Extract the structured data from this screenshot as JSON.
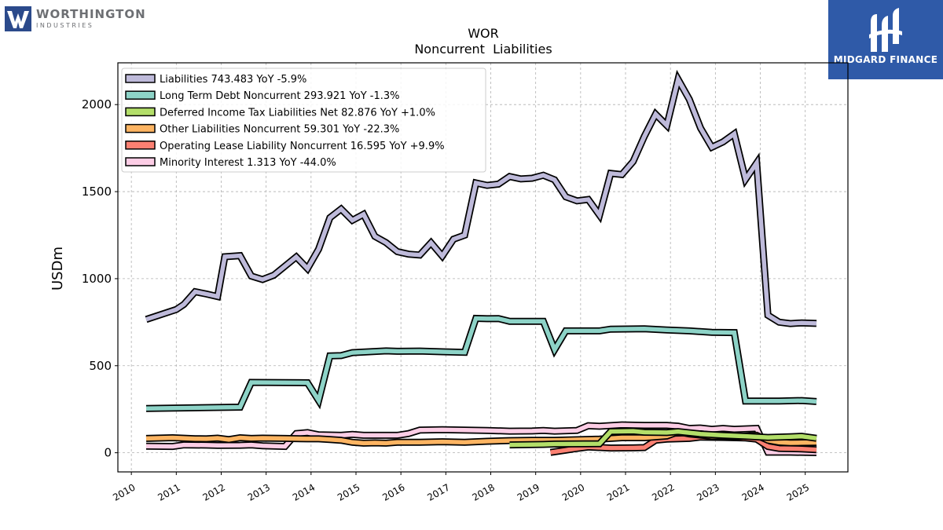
{
  "brand_left": {
    "name": "WORTHINGTON",
    "sub": "INDUSTRIES"
  },
  "brand_right": {
    "name": "MIDGARD FINANCE"
  },
  "chart_data": {
    "type": "line",
    "title": "WOR",
    "subtitle": "Noncurrent  Liabilities",
    "xlabel": "",
    "ylabel": "USDm",
    "xlim": [
      2009.7,
      2025.95
    ],
    "ylim": [
      -110,
      2240
    ],
    "x_ticks": [
      "2010",
      "2011",
      "2012",
      "2013",
      "2014",
      "2015",
      "2016",
      "2017",
      "2018",
      "2019",
      "2020",
      "2021",
      "2022",
      "2023",
      "2024",
      "2025"
    ],
    "y_ticks": [
      0,
      500,
      1000,
      1500,
      2000
    ],
    "grid": true,
    "legend_position": "top-left",
    "series": [
      {
        "name": "Liabilities  743.483 YoY -5.9%",
        "color": "#bebada",
        "points": [
          [
            2010.33,
            766
          ],
          [
            2011.0,
            823
          ],
          [
            2011.17,
            852
          ],
          [
            2011.42,
            925
          ],
          [
            2011.67,
            912
          ],
          [
            2011.92,
            897
          ],
          [
            2012.08,
            1126
          ],
          [
            2012.42,
            1132
          ],
          [
            2012.67,
            1015
          ],
          [
            2012.92,
            995
          ],
          [
            2013.17,
            1020
          ],
          [
            2013.42,
            1072
          ],
          [
            2013.67,
            1125
          ],
          [
            2013.92,
            1058
          ],
          [
            2014.17,
            1170
          ],
          [
            2014.42,
            1350
          ],
          [
            2014.67,
            1400
          ],
          [
            2014.92,
            1335
          ],
          [
            2015.17,
            1370
          ],
          [
            2015.42,
            1243
          ],
          [
            2015.67,
            1207
          ],
          [
            2015.92,
            1155
          ],
          [
            2016.17,
            1141
          ],
          [
            2016.42,
            1136
          ],
          [
            2016.67,
            1206
          ],
          [
            2016.92,
            1130
          ],
          [
            2017.17,
            1227
          ],
          [
            2017.42,
            1250
          ],
          [
            2017.67,
            1550
          ],
          [
            2017.92,
            1536
          ],
          [
            2018.17,
            1543
          ],
          [
            2018.42,
            1587
          ],
          [
            2018.67,
            1573
          ],
          [
            2018.92,
            1577
          ],
          [
            2019.17,
            1594
          ],
          [
            2019.42,
            1568
          ],
          [
            2019.67,
            1470
          ],
          [
            2019.92,
            1447
          ],
          [
            2020.17,
            1455
          ],
          [
            2020.42,
            1365
          ],
          [
            2020.67,
            1605
          ],
          [
            2020.92,
            1598
          ],
          [
            2021.17,
            1673
          ],
          [
            2021.42,
            1818
          ],
          [
            2021.67,
            1945
          ],
          [
            2021.92,
            1880
          ],
          [
            2022.17,
            2145
          ],
          [
            2022.42,
            2030
          ],
          [
            2022.67,
            1865
          ],
          [
            2022.92,
            1755
          ],
          [
            2023.17,
            1786
          ],
          [
            2023.42,
            1832
          ],
          [
            2023.67,
            1570
          ],
          [
            2023.92,
            1665
          ],
          [
            2024.17,
            790
          ],
          [
            2024.42,
            750
          ],
          [
            2024.67,
            742
          ],
          [
            2024.92,
            746
          ],
          [
            2025.25,
            743
          ]
        ]
      },
      {
        "name": "Long Term Debt Noncurrent  293.921 YoY -1.3%",
        "color": "#8dd3c7",
        "points": [
          [
            2010.33,
            254
          ],
          [
            2012.42,
            262
          ],
          [
            2012.67,
            404
          ],
          [
            2013.92,
            402
          ],
          [
            2014.17,
            300
          ],
          [
            2014.42,
            556
          ],
          [
            2014.67,
            558
          ],
          [
            2014.92,
            575
          ],
          [
            2015.42,
            582
          ],
          [
            2015.67,
            585
          ],
          [
            2015.92,
            583
          ],
          [
            2016.42,
            584
          ],
          [
            2016.92,
            580
          ],
          [
            2017.42,
            577
          ],
          [
            2017.67,
            772
          ],
          [
            2017.92,
            770
          ],
          [
            2018.17,
            771
          ],
          [
            2018.42,
            755
          ],
          [
            2019.17,
            755
          ],
          [
            2019.42,
            592
          ],
          [
            2019.67,
            700
          ],
          [
            2020.42,
            700
          ],
          [
            2020.67,
            710
          ],
          [
            2021.42,
            712
          ],
          [
            2021.92,
            705
          ],
          [
            2022.42,
            700
          ],
          [
            2022.92,
            692
          ],
          [
            2023.42,
            690
          ],
          [
            2023.67,
            297
          ],
          [
            2024.42,
            297
          ],
          [
            2024.92,
            300
          ],
          [
            2025.25,
            294
          ]
        ]
      },
      {
        "name": "Deferred Income Tax Liabilities Net  82.876 YoY +1.0%",
        "color": "#b3de69",
        "points": [
          [
            2018.42,
            45
          ],
          [
            2019.17,
            48
          ],
          [
            2019.42,
            50
          ],
          [
            2020.42,
            52
          ],
          [
            2020.67,
            122
          ],
          [
            2021.17,
            124
          ],
          [
            2021.42,
            118
          ],
          [
            2021.92,
            116
          ],
          [
            2022.17,
            122
          ],
          [
            2022.67,
            108
          ],
          [
            2023.17,
            100
          ],
          [
            2023.67,
            95
          ],
          [
            2024.17,
            88
          ],
          [
            2024.67,
            92
          ],
          [
            2024.92,
            95
          ],
          [
            2025.25,
            83
          ]
        ]
      },
      {
        "name": "Other Liabilities Noncurrent  59.301 YoY -22.3%",
        "color": "#fdb462",
        "points": [
          [
            2010.33,
            82
          ],
          [
            2010.92,
            86
          ],
          [
            2011.42,
            81
          ],
          [
            2011.67,
            80
          ],
          [
            2011.92,
            84
          ],
          [
            2012.17,
            76
          ],
          [
            2012.42,
            86
          ],
          [
            2012.67,
            82
          ],
          [
            2012.92,
            84
          ],
          [
            2013.42,
            82
          ],
          [
            2013.92,
            80
          ],
          [
            2014.17,
            80
          ],
          [
            2014.42,
            76
          ],
          [
            2014.67,
            72
          ],
          [
            2014.92,
            60
          ],
          [
            2015.17,
            55
          ],
          [
            2015.42,
            57
          ],
          [
            2015.67,
            55
          ],
          [
            2015.92,
            60
          ],
          [
            2016.42,
            60
          ],
          [
            2016.92,
            63
          ],
          [
            2017.42,
            60
          ],
          [
            2017.92,
            66
          ],
          [
            2018.42,
            70
          ],
          [
            2018.92,
            72
          ],
          [
            2019.42,
            72
          ],
          [
            2019.92,
            75
          ],
          [
            2020.42,
            78
          ],
          [
            2020.92,
            86
          ],
          [
            2021.42,
            86
          ],
          [
            2021.92,
            96
          ],
          [
            2022.17,
            120
          ],
          [
            2022.42,
            108
          ],
          [
            2022.92,
            95
          ],
          [
            2023.42,
            92
          ],
          [
            2023.92,
            100
          ],
          [
            2024.17,
            72
          ],
          [
            2024.42,
            60
          ],
          [
            2024.67,
            57
          ],
          [
            2024.92,
            58
          ],
          [
            2025.25,
            59
          ]
        ]
      },
      {
        "name": "Operating Lease Liability Noncurrent  16.595 YoY +9.9%",
        "color": "#fb8072",
        "points": [
          [
            2019.33,
            2
          ],
          [
            2019.67,
            15
          ],
          [
            2019.92,
            25
          ],
          [
            2020.17,
            33
          ],
          [
            2020.67,
            27
          ],
          [
            2021.17,
            28
          ],
          [
            2021.42,
            30
          ],
          [
            2021.67,
            72
          ],
          [
            2021.92,
            78
          ],
          [
            2022.42,
            82
          ],
          [
            2022.67,
            90
          ],
          [
            2023.17,
            88
          ],
          [
            2023.67,
            85
          ],
          [
            2023.92,
            78
          ],
          [
            2024.17,
            36
          ],
          [
            2024.42,
            25
          ],
          [
            2024.92,
            22
          ],
          [
            2025.25,
            17
          ]
        ]
      },
      {
        "name": "Minority Interest  1.313 YoY -44.0%",
        "color": "#fccde5",
        "points": [
          [
            2010.33,
            38
          ],
          [
            2010.92,
            36
          ],
          [
            2011.17,
            45
          ],
          [
            2011.67,
            44
          ],
          [
            2011.92,
            42
          ],
          [
            2012.42,
            43
          ],
          [
            2012.67,
            45
          ],
          [
            2012.92,
            40
          ],
          [
            2013.42,
            36
          ],
          [
            2013.67,
            110
          ],
          [
            2013.92,
            116
          ],
          [
            2014.17,
            103
          ],
          [
            2014.67,
            100
          ],
          [
            2014.92,
            105
          ],
          [
            2015.17,
            100
          ],
          [
            2015.42,
            100
          ],
          [
            2015.92,
            100
          ],
          [
            2016.17,
            110
          ],
          [
            2016.42,
            130
          ],
          [
            2016.92,
            132
          ],
          [
            2017.42,
            130
          ],
          [
            2017.92,
            128
          ],
          [
            2018.42,
            124
          ],
          [
            2018.92,
            125
          ],
          [
            2019.17,
            128
          ],
          [
            2019.42,
            124
          ],
          [
            2019.92,
            128
          ],
          [
            2020.17,
            155
          ],
          [
            2020.42,
            152
          ],
          [
            2020.92,
            160
          ],
          [
            2021.42,
            157
          ],
          [
            2021.92,
            157
          ],
          [
            2022.17,
            153
          ],
          [
            2022.42,
            140
          ],
          [
            2022.67,
            142
          ],
          [
            2022.92,
            135
          ],
          [
            2023.17,
            140
          ],
          [
            2023.42,
            135
          ],
          [
            2023.92,
            140
          ],
          [
            2024.17,
            3
          ],
          [
            2024.67,
            3
          ],
          [
            2025.25,
            1
          ]
        ]
      }
    ]
  }
}
